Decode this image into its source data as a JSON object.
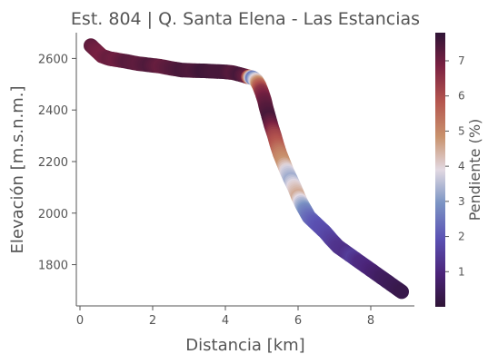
{
  "chart_data": {
    "type": "scatter",
    "title": "Est. 804 | Q. Santa Elena - Las Estancias",
    "xlabel": "Distancia [km]",
    "ylabel": "Elevación [m.s.n.m.]",
    "xlim": [
      -0.1,
      9.2
    ],
    "ylim": [
      1640,
      2700
    ],
    "xticks": [
      0,
      2,
      4,
      6,
      8
    ],
    "yticks": [
      1800,
      2000,
      2200,
      2400,
      2600
    ],
    "grid": false,
    "colorbar": {
      "label": "Pendiente (%)",
      "range": [
        0,
        7.8
      ],
      "ticks": [
        1,
        2,
        3,
        4,
        5,
        6,
        7
      ],
      "colormap": "twilight_shifted"
    },
    "series": [
      {
        "x": [
          0.3,
          0.45,
          0.6,
          0.8,
          1.0,
          1.3,
          1.6,
          1.9,
          2.2,
          2.5,
          2.8,
          3.1,
          3.4,
          3.7,
          4.0,
          4.2,
          4.4,
          4.6,
          4.75,
          4.85,
          4.93,
          5.0,
          5.07,
          5.13,
          5.2,
          5.27,
          5.35,
          5.42,
          5.5,
          5.6,
          5.7,
          5.8,
          5.9,
          6.0,
          6.1,
          6.2,
          6.3,
          6.45,
          6.6,
          6.75,
          6.9,
          7.1,
          7.3,
          7.5,
          7.7,
          7.9,
          8.1,
          8.3,
          8.5,
          8.7,
          8.85
        ],
        "y": [
          2650,
          2630,
          2610,
          2600,
          2595,
          2588,
          2580,
          2575,
          2570,
          2562,
          2555,
          2553,
          2552,
          2550,
          2548,
          2545,
          2538,
          2530,
          2525,
          2515,
          2495,
          2470,
          2440,
          2405,
          2370,
          2335,
          2300,
          2265,
          2230,
          2195,
          2160,
          2130,
          2100,
          2065,
          2035,
          2010,
          1985,
          1965,
          1945,
          1925,
          1900,
          1870,
          1850,
          1830,
          1810,
          1790,
          1770,
          1750,
          1730,
          1710,
          1695
        ],
        "slope": [
          7.2,
          7.0,
          6.9,
          7.1,
          7.0,
          7.3,
          7.2,
          7.4,
          7.1,
          7.3,
          7.5,
          7.4,
          7.6,
          7.5,
          7.5,
          7.3,
          7.5,
          7.1,
          2.5,
          4.0,
          5.5,
          6.5,
          7.0,
          7.3,
          7.5,
          7.0,
          6.2,
          5.8,
          5.2,
          4.8,
          3.8,
          3.3,
          4.0,
          4.5,
          3.5,
          2.8,
          2.4,
          2.1,
          1.9,
          1.8,
          1.6,
          1.3,
          1.2,
          1.5,
          1.1,
          1.0,
          0.8,
          0.6,
          0.5,
          0.4,
          0.3
        ]
      }
    ]
  }
}
